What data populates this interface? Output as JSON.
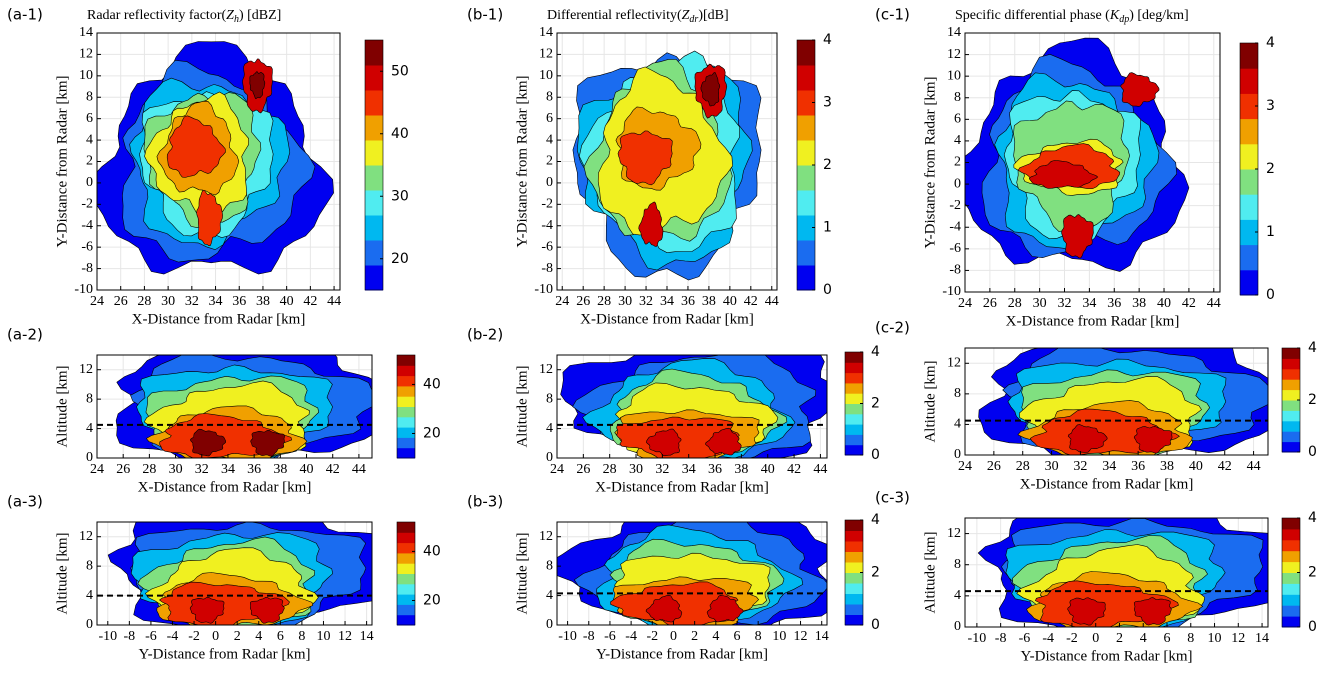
{
  "chart_data": [
    {
      "type": "contourf",
      "panel": "(a-1)",
      "title": {
        "text": "Radar reflectivity  factor(",
        "symbol": "Z",
        "subscript": "h",
        "unit": ") [dBZ]"
      },
      "x_label": "X-Distance  from Radar [km]",
      "y_label": "Y-Distance from Radar [km]",
      "xlim": [
        24,
        44.5
      ],
      "ylim": [
        -10,
        14
      ],
      "xticks": [
        24,
        26,
        28,
        30,
        32,
        34,
        36,
        38,
        40,
        42,
        44
      ],
      "yticks": [
        -10,
        -8,
        -6,
        -4,
        -2,
        0,
        2,
        4,
        6,
        8,
        10,
        12,
        14
      ],
      "clim": [
        15,
        55
      ],
      "cticks": [
        20,
        30,
        40,
        50
      ],
      "grid": true,
      "colors": [
        "#0000f0",
        "#1a6cf0",
        "#00b8f0",
        "#50ecf0",
        "#80e080",
        "#f0f020",
        "#f0a000",
        "#f03000",
        "#d00000",
        "#800000"
      ]
    },
    {
      "type": "contourf",
      "panel": "(a-2)",
      "x_label": "X-Distance  from Radar [km]",
      "y_label": "Altitude [km]",
      "xlim": [
        24,
        45
      ],
      "ylim": [
        0,
        14
      ],
      "xticks": [
        24,
        26,
        28,
        30,
        32,
        34,
        36,
        38,
        40,
        42,
        44
      ],
      "yticks": [
        0,
        4,
        8,
        12
      ],
      "clim": [
        10,
        52
      ],
      "cticks": [
        20,
        40
      ],
      "hline": 4.5,
      "grid": true,
      "colors": [
        "#0000f0",
        "#1a6cf0",
        "#00b8f0",
        "#50ecf0",
        "#80e080",
        "#f0f020",
        "#f0a000",
        "#f03000",
        "#d00000",
        "#800000"
      ]
    },
    {
      "type": "contourf",
      "panel": "(a-3)",
      "x_label": "Y-Distance  from Radar [km]",
      "y_label": "Altitude [km]",
      "xlim": [
        -11,
        14.5
      ],
      "ylim": [
        0,
        14
      ],
      "xticks": [
        -10,
        -8,
        -6,
        -4,
        -2,
        0,
        2,
        4,
        6,
        8,
        10,
        12,
        14
      ],
      "yticks": [
        0,
        4,
        8,
        12
      ],
      "clim": [
        10,
        52
      ],
      "cticks": [
        20,
        40
      ],
      "hline": 4,
      "grid": true,
      "colors": [
        "#0000f0",
        "#1a6cf0",
        "#00b8f0",
        "#50ecf0",
        "#80e080",
        "#f0f020",
        "#f0a000",
        "#f03000",
        "#d00000",
        "#800000"
      ]
    },
    {
      "type": "contourf",
      "panel": "(b-1)",
      "title": {
        "text": "Differential  reflectivity(",
        "symbol": "Z",
        "subscript": "dr",
        "unit": ")[dB]"
      },
      "x_label": "X-Distance  from Radar [km]",
      "y_label": "Y-Distance from Radar [km]",
      "xlim": [
        23.5,
        44.5
      ],
      "ylim": [
        -10,
        14
      ],
      "xticks": [
        24,
        26,
        28,
        30,
        32,
        34,
        36,
        38,
        40,
        42,
        44
      ],
      "yticks": [
        -10,
        -8,
        -6,
        -4,
        -2,
        0,
        2,
        4,
        6,
        8,
        10,
        12,
        14
      ],
      "clim": [
        0,
        4
      ],
      "cticks": [
        0,
        1,
        2,
        3,
        4
      ],
      "grid": true,
      "colors": [
        "#0000f0",
        "#1a6cf0",
        "#00b8f0",
        "#50ecf0",
        "#80e080",
        "#f0f020",
        "#f0a000",
        "#f03000",
        "#d00000",
        "#800000"
      ]
    },
    {
      "type": "contourf",
      "panel": "(b-2)",
      "x_label": "X-Distance  from Radar [km]",
      "y_label": "Altitude [km]",
      "xlim": [
        24,
        44.5
      ],
      "ylim": [
        0,
        14
      ],
      "xticks": [
        24,
        26,
        28,
        30,
        32,
        34,
        36,
        38,
        40,
        42,
        44
      ],
      "yticks": [
        0,
        4,
        8,
        12
      ],
      "clim": [
        0,
        4
      ],
      "cticks": [
        0,
        2,
        4
      ],
      "hline": 4.5,
      "grid": true,
      "colors": [
        "#0000f0",
        "#1a6cf0",
        "#00b8f0",
        "#50ecf0",
        "#80e080",
        "#f0f020",
        "#f0a000",
        "#f03000",
        "#d00000",
        "#800000"
      ]
    },
    {
      "type": "contourf",
      "panel": "(b-3)",
      "x_label": "Y-Distance  from Radar [km]",
      "y_label": "Altitude [km]",
      "xlim": [
        -11,
        14.5
      ],
      "ylim": [
        0,
        14
      ],
      "xticks": [
        -10,
        -8,
        -6,
        -4,
        -2,
        0,
        2,
        4,
        6,
        8,
        10,
        12,
        14
      ],
      "yticks": [
        0,
        4,
        8,
        12
      ],
      "clim": [
        0,
        4
      ],
      "cticks": [
        0,
        2,
        4
      ],
      "hline": 4.3,
      "grid": true,
      "colors": [
        "#0000f0",
        "#1a6cf0",
        "#00b8f0",
        "#50ecf0",
        "#80e080",
        "#f0f020",
        "#f0a000",
        "#f03000",
        "#d00000",
        "#800000"
      ]
    },
    {
      "type": "contourf",
      "panel": "(c-1)",
      "title": {
        "text": "Specific differential  phase (",
        "symbol": "K",
        "subscript": "dp",
        "unit": ")  [deg/km]"
      },
      "x_label": "X-Distance  from Radar [km]",
      "y_label": "Y-Distance from Radar [km]",
      "xlim": [
        24,
        44.5
      ],
      "ylim": [
        -10,
        14
      ],
      "xticks": [
        24,
        26,
        28,
        30,
        32,
        34,
        36,
        38,
        40,
        42,
        44
      ],
      "yticks": [
        -10,
        -8,
        -6,
        -4,
        -2,
        0,
        2,
        4,
        6,
        8,
        10,
        12,
        14
      ],
      "clim": [
        0,
        4
      ],
      "cticks": [
        0,
        1,
        2,
        3,
        4
      ],
      "grid": true,
      "colors": [
        "#0000f0",
        "#1a6cf0",
        "#00b8f0",
        "#50ecf0",
        "#80e080",
        "#f0f020",
        "#f0a000",
        "#f03000",
        "#d00000",
        "#800000"
      ]
    },
    {
      "type": "contourf",
      "panel": "(c-2)",
      "x_label": "X-Distance  from Radar [km]",
      "y_label": "Altitude [km]",
      "xlim": [
        24,
        45
      ],
      "ylim": [
        0,
        14
      ],
      "xticks": [
        24,
        26,
        28,
        30,
        32,
        34,
        36,
        38,
        40,
        42,
        44
      ],
      "yticks": [
        0,
        4,
        8,
        12
      ],
      "clim": [
        0,
        4
      ],
      "cticks": [
        0,
        2,
        4
      ],
      "hline": 4.5,
      "grid": true,
      "colors": [
        "#0000f0",
        "#1a6cf0",
        "#00b8f0",
        "#50ecf0",
        "#80e080",
        "#f0f020",
        "#f0a000",
        "#f03000",
        "#d00000",
        "#800000"
      ]
    },
    {
      "type": "contourf",
      "panel": "(c-3)",
      "x_label": "Y-Distance  from Radar [km]",
      "y_label": "Altitude [km]",
      "xlim": [
        -11,
        14.5
      ],
      "ylim": [
        0,
        14
      ],
      "xticks": [
        -10,
        -8,
        -6,
        -4,
        -2,
        0,
        2,
        4,
        6,
        8,
        10,
        12,
        14
      ],
      "yticks": [
        0,
        4,
        8,
        12
      ],
      "clim": [
        0,
        4
      ],
      "cticks": [
        0,
        2,
        4
      ],
      "hline": 4.6,
      "grid": true,
      "colors": [
        "#0000f0",
        "#1a6cf0",
        "#00b8f0",
        "#50ecf0",
        "#80e080",
        "#f0f020",
        "#f0a000",
        "#f03000",
        "#d00000",
        "#800000"
      ]
    }
  ]
}
